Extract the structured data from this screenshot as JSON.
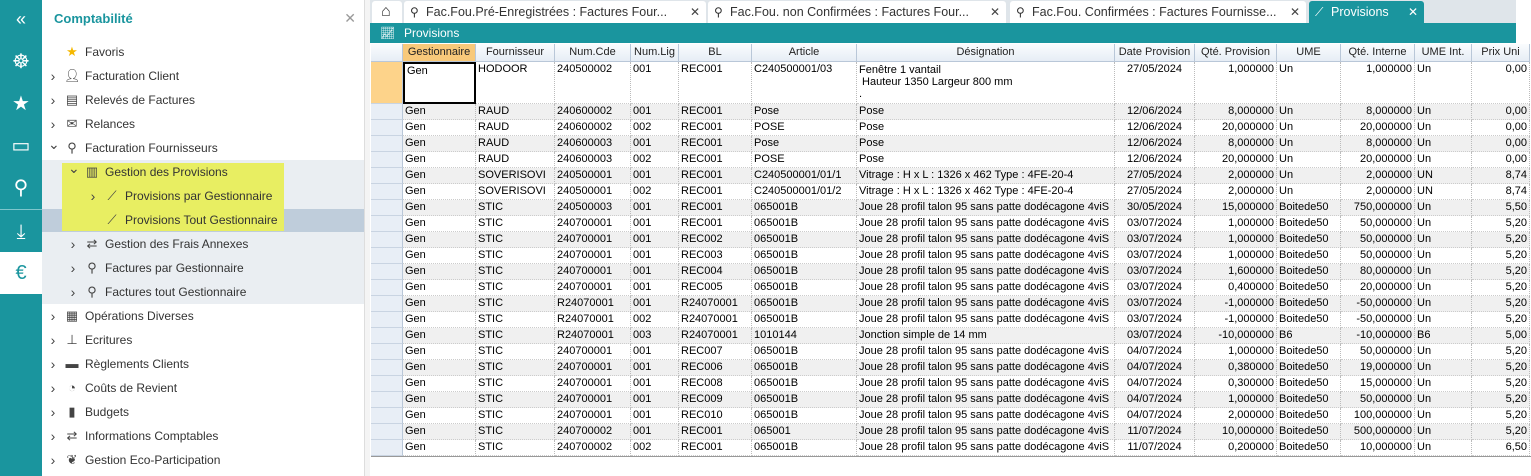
{
  "rail": {
    "items": [
      "collapse-icon",
      "helm-icon",
      "star-icon",
      "monitor-icon",
      "search-icon",
      "download-icon",
      "invoice-euro-icon"
    ]
  },
  "sidebar": {
    "title": "Comptabilité",
    "items": [
      {
        "label": "Favoris",
        "icon": "star-icon",
        "level": 0,
        "chevron": ""
      },
      {
        "label": "Facturation Client",
        "icon": "client-icon",
        "level": 0,
        "chevron": "right"
      },
      {
        "label": "Relevés de Factures",
        "icon": "statement-icon",
        "level": 0,
        "chevron": "right"
      },
      {
        "label": "Relances",
        "icon": "mail-icon",
        "level": 0,
        "chevron": "right"
      },
      {
        "label": "Facturation Fournisseurs",
        "icon": "search-icon",
        "level": 0,
        "chevron": "down"
      },
      {
        "label": "Gestion des Provisions",
        "icon": "receipt-icon",
        "level": 1,
        "chevron": "down"
      },
      {
        "label": "Provisions par Gestionnaire",
        "icon": "chart-line-icon",
        "level": 2,
        "chevron": "right"
      },
      {
        "label": "Provisions Tout Gestionnaire",
        "icon": "chart-line-icon",
        "level": 2,
        "chevron": "",
        "selected": true
      },
      {
        "label": "Gestion des Frais Annexes",
        "icon": "money-exchange-icon",
        "level": 1,
        "chevron": "right"
      },
      {
        "label": "Factures par Gestionnaire",
        "icon": "search-icon",
        "level": 1,
        "chevron": "right"
      },
      {
        "label": "Factures tout Gestionnaire",
        "icon": "search-icon",
        "level": 1,
        "chevron": "right"
      },
      {
        "label": "Opérations Diverses",
        "icon": "calculator-icon",
        "level": 0,
        "chevron": "right"
      },
      {
        "label": "Ecritures",
        "icon": "stamp-icon",
        "level": 0,
        "chevron": "right"
      },
      {
        "label": "Règlements Clients",
        "icon": "money-icon",
        "level": 0,
        "chevron": "right"
      },
      {
        "label": "Coûts de Revient",
        "icon": "pie-chart-icon",
        "level": 0,
        "chevron": "right"
      },
      {
        "label": "Budgets",
        "icon": "bar-chart-icon",
        "level": 0,
        "chevron": "right"
      },
      {
        "label": "Informations Comptables",
        "icon": "money-exchange-icon",
        "level": 0,
        "chevron": "right"
      },
      {
        "label": "Gestion Eco-Participation",
        "icon": "leaf-icon",
        "level": 0,
        "chevron": "right"
      }
    ]
  },
  "tabs": [
    {
      "icon": "home-icon",
      "label": ""
    },
    {
      "icon": "search-icon",
      "label": "Fac.Fou.Pré-Enregistrées : Factures Four..."
    },
    {
      "icon": "search-icon",
      "label": "Fac.Fou. non Confirmées : Factures Four..."
    },
    {
      "icon": "search-icon",
      "label": "Fac.Fou. Confirmées : Factures Fournisse..."
    },
    {
      "icon": "chart-line-icon",
      "label": "Provisions",
      "active": true
    }
  ],
  "band": {
    "title": "Provisions"
  },
  "colors": {
    "teal": "#1a959e",
    "highlight": "#e8ee62",
    "selected_header": "#f8c97a"
  },
  "grid": {
    "columns": [
      "Gestionnaire",
      "Fournisseur",
      "Num.Cde",
      "Num.Lig",
      "BL",
      "Article",
      "Désignation",
      "Date Provision",
      "Qté.  Provision",
      "UME",
      "Qté.  Interne",
      "UME Int.",
      "Prix Uni"
    ],
    "rows": [
      [
        "Gen",
        "HODOOR",
        "240500002",
        "001",
        "REC001",
        "C240500001/03",
        "Fenêtre 1 vantail\n Hauteur 1350 Largeur 800 mm\n.",
        "27/05/2024",
        "1,000000",
        "Un",
        "1,000000",
        "Un",
        "0,00"
      ],
      [
        "Gen",
        "RAUD",
        "240600002",
        "001",
        "REC001",
        "Pose",
        "Pose",
        "12/06/2024",
        "8,000000",
        "Un",
        "8,000000",
        "Un",
        "0,00"
      ],
      [
        "Gen",
        "RAUD",
        "240600002",
        "002",
        "REC001",
        "POSE",
        "Pose",
        "12/06/2024",
        "20,000000",
        "Un",
        "20,000000",
        "Un",
        "0,00"
      ],
      [
        "Gen",
        "RAUD",
        "240600003",
        "001",
        "REC001",
        "Pose",
        "Pose",
        "12/06/2024",
        "8,000000",
        "Un",
        "8,000000",
        "Un",
        "0,00"
      ],
      [
        "Gen",
        "RAUD",
        "240600003",
        "002",
        "REC001",
        "POSE",
        "Pose",
        "12/06/2024",
        "20,000000",
        "Un",
        "20,000000",
        "Un",
        "0,00"
      ],
      [
        "Gen",
        "SOVERISOVI",
        "240500001",
        "001",
        "REC001",
        "C240500001/01/1",
        "Vitrage : H x L : 1326 x 462 Type : 4FE-20-4",
        "27/05/2024",
        "2,000000",
        "Un",
        "2,000000",
        "UN",
        "8,74"
      ],
      [
        "Gen",
        "SOVERISOVI",
        "240500001",
        "002",
        "REC001",
        "C240500001/01/2",
        "Vitrage : H x L : 1326 x 462 Type : 4FE-20-4",
        "27/05/2024",
        "2,000000",
        "Un",
        "2,000000",
        "UN",
        "8,74"
      ],
      [
        "Gen",
        "STIC",
        "240500003",
        "001",
        "REC001",
        "065001B",
        "Joue 28 profil talon 95 sans patte dodécagone 4viS",
        "30/05/2024",
        "15,000000",
        "Boitede50",
        "750,000000",
        "Un",
        "5,50"
      ],
      [
        "Gen",
        "STIC",
        "240700001",
        "001",
        "REC001",
        "065001B",
        "Joue 28 profil talon 95 sans patte dodécagone 4viS",
        "03/07/2024",
        "1,000000",
        "Boitede50",
        "50,000000",
        "Un",
        "5,20"
      ],
      [
        "Gen",
        "STIC",
        "240700001",
        "001",
        "REC002",
        "065001B",
        "Joue 28 profil talon 95 sans patte dodécagone 4viS",
        "03/07/2024",
        "1,000000",
        "Boitede50",
        "50,000000",
        "Un",
        "5,20"
      ],
      [
        "Gen",
        "STIC",
        "240700001",
        "001",
        "REC003",
        "065001B",
        "Joue 28 profil talon 95 sans patte dodécagone 4viS",
        "03/07/2024",
        "1,000000",
        "Boitede50",
        "50,000000",
        "Un",
        "5,20"
      ],
      [
        "Gen",
        "STIC",
        "240700001",
        "001",
        "REC004",
        "065001B",
        "Joue 28 profil talon 95 sans patte dodécagone 4viS",
        "03/07/2024",
        "1,600000",
        "Boitede50",
        "80,000000",
        "Un",
        "5,20"
      ],
      [
        "Gen",
        "STIC",
        "240700001",
        "001",
        "REC005",
        "065001B",
        "Joue 28 profil talon 95 sans patte dodécagone 4viS",
        "03/07/2024",
        "0,400000",
        "Boitede50",
        "20,000000",
        "Un",
        "5,20"
      ],
      [
        "Gen",
        "STIC",
        "R24070001",
        "001",
        "R24070001",
        "065001B",
        "Joue 28 profil talon 95 sans patte dodécagone 4viS",
        "03/07/2024",
        "-1,000000",
        "Boitede50",
        "-50,000000",
        "Un",
        "5,20"
      ],
      [
        "Gen",
        "STIC",
        "R24070001",
        "002",
        "R24070001",
        "065001B",
        "Joue 28 profil talon 95 sans patte dodécagone 4viS",
        "03/07/2024",
        "-1,000000",
        "Boitede50",
        "-50,000000",
        "Un",
        "5,20"
      ],
      [
        "Gen",
        "STIC",
        "R24070001",
        "003",
        "R24070001",
        "1010144",
        "Jonction simple de 14 mm",
        "03/07/2024",
        "-10,000000",
        "B6",
        "-10,000000",
        "B6",
        "5,00"
      ],
      [
        "Gen",
        "STIC",
        "240700001",
        "001",
        "REC007",
        "065001B",
        "Joue 28 profil talon 95 sans patte dodécagone 4viS",
        "04/07/2024",
        "1,000000",
        "Boitede50",
        "50,000000",
        "Un",
        "5,20"
      ],
      [
        "Gen",
        "STIC",
        "240700001",
        "001",
        "REC006",
        "065001B",
        "Joue 28 profil talon 95 sans patte dodécagone 4viS",
        "04/07/2024",
        "0,380000",
        "Boitede50",
        "19,000000",
        "Un",
        "5,20"
      ],
      [
        "Gen",
        "STIC",
        "240700001",
        "001",
        "REC008",
        "065001B",
        "Joue 28 profil talon 95 sans patte dodécagone 4viS",
        "04/07/2024",
        "0,300000",
        "Boitede50",
        "15,000000",
        "Un",
        "5,20"
      ],
      [
        "Gen",
        "STIC",
        "240700001",
        "001",
        "REC009",
        "065001B",
        "Joue 28 profil talon 95 sans patte dodécagone 4viS",
        "04/07/2024",
        "1,000000",
        "Boitede50",
        "50,000000",
        "Un",
        "5,20"
      ],
      [
        "Gen",
        "STIC",
        "240700001",
        "001",
        "REC010",
        "065001B",
        "Joue 28 profil talon 95 sans patte dodécagone 4viS",
        "04/07/2024",
        "2,000000",
        "Boitede50",
        "100,000000",
        "Un",
        "5,20"
      ],
      [
        "Gen",
        "STIC",
        "240700002",
        "001",
        "REC001",
        "065001",
        "Joue 28 profil talon 95 sans patte dodécagone 4viS",
        "11/07/2024",
        "10,000000",
        "Boitede50",
        "500,000000",
        "Un",
        "5,20"
      ],
      [
        "Gen",
        "STIC",
        "240700002",
        "002",
        "REC001",
        "065001B",
        "Joue 28 profil talon 95 sans patte dodécagone 4viS",
        "11/07/2024",
        "0,200000",
        "Boitede50",
        "10,000000",
        "Un",
        "6,50"
      ]
    ]
  }
}
